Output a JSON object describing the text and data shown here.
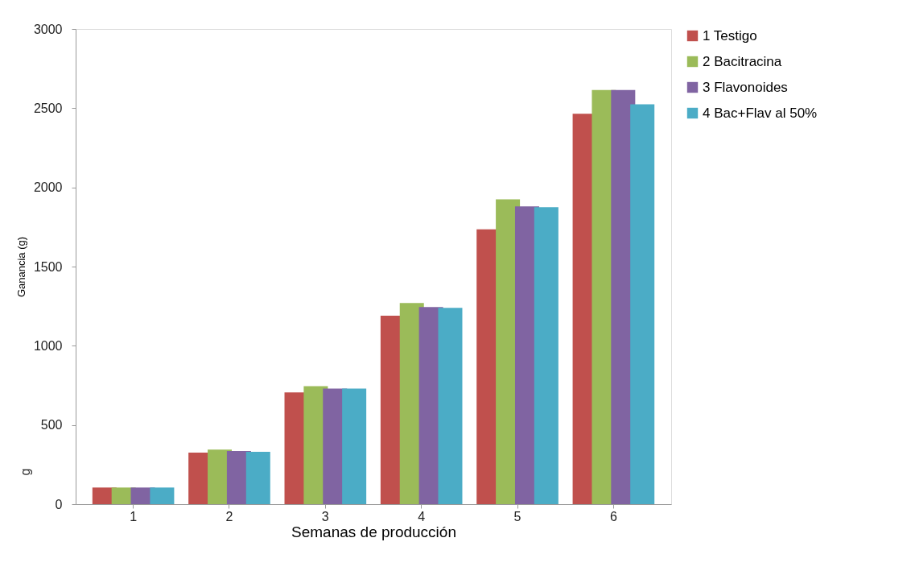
{
  "chart_data": {
    "type": "bar",
    "xlabel": "Semanas de producción",
    "ylabel": "Ganancia (g)",
    "annotations": [
      "g"
    ],
    "categories": [
      "1",
      "2",
      "3",
      "4",
      "5",
      "6"
    ],
    "series": [
      {
        "name": "1 Testigo",
        "color": "#c0504d",
        "values": [
          105,
          325,
          705,
          1190,
          1735,
          2465
        ]
      },
      {
        "name": "2 Bacitracina",
        "color": "#9bbb59",
        "values": [
          105,
          345,
          745,
          1270,
          1925,
          2615
        ]
      },
      {
        "name": "3 Flavonoides",
        "color": "#8064a2",
        "values": [
          105,
          335,
          730,
          1245,
          1880,
          2615
        ]
      },
      {
        "name": "4 Bac+Flav al 50%",
        "color": "#4bacc6",
        "values": [
          105,
          330,
          730,
          1240,
          1875,
          2525
        ]
      }
    ],
    "ylim": [
      0,
      3000
    ],
    "yticks": [
      0,
      500,
      1000,
      1500,
      2000,
      2500,
      3000
    ],
    "grid": false,
    "legend": "right"
  }
}
